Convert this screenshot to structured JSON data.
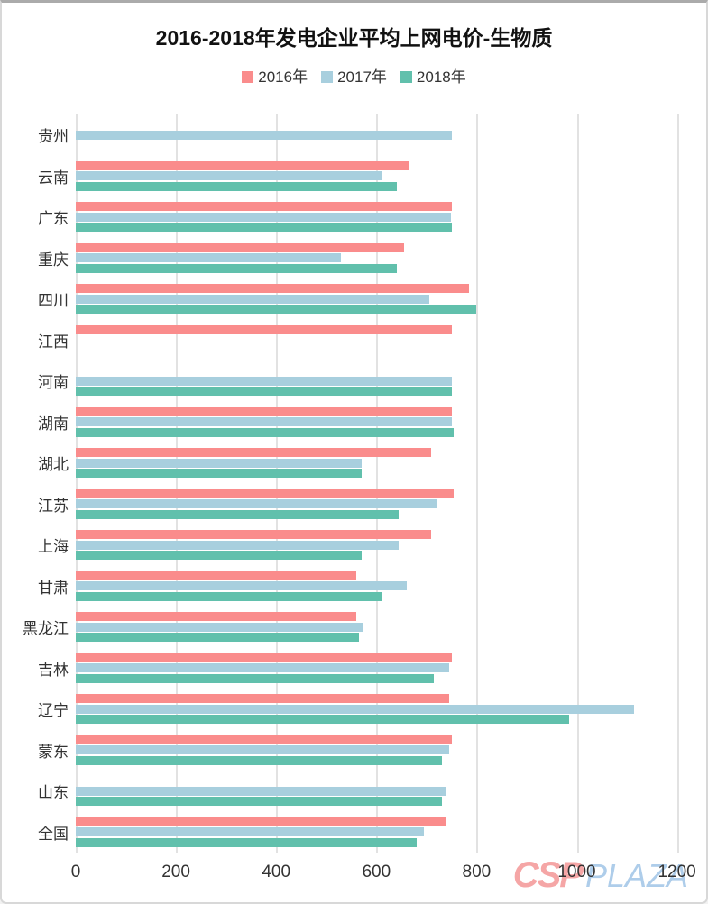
{
  "page": {
    "title": "2016-2018年发电企业平均上网电价-生物质"
  },
  "watermark": {
    "csp": "CSP",
    "plaza": "PLAZA"
  },
  "colors": {
    "series_2016": "#FA8C8C",
    "series_2017": "#A8CFDE",
    "series_2018": "#61C0AC",
    "gridline": "#E2E2E2",
    "text": "#333333"
  },
  "chart_data": {
    "type": "bar",
    "orientation": "horizontal",
    "title": "2016-2018年发电企业平均上网电价-生物质",
    "legend_position": "top",
    "grid": true,
    "categories": [
      "贵州",
      "云南",
      "广东",
      "重庆",
      "四川",
      "江西",
      "河南",
      "湖南",
      "湖北",
      "江苏",
      "上海",
      "甘肃",
      "黑龙江",
      "吉林",
      "辽宁",
      "蒙东",
      "山东",
      "全国"
    ],
    "series": [
      {
        "name": "2016年",
        "color": "#FA8C8C",
        "values": [
          null,
          665,
          750,
          655,
          785,
          750,
          null,
          750,
          710,
          755,
          710,
          560,
          560,
          750,
          745,
          750,
          null,
          740
        ]
      },
      {
        "name": "2017年",
        "color": "#A8CFDE",
        "values": [
          750,
          610,
          748,
          530,
          705,
          null,
          750,
          750,
          570,
          720,
          645,
          660,
          575,
          745,
          1115,
          745,
          740,
          695
        ]
      },
      {
        "name": "2018年",
        "color": "#61C0AC",
        "values": [
          null,
          640,
          750,
          640,
          800,
          null,
          750,
          755,
          570,
          645,
          570,
          610,
          565,
          715,
          985,
          730,
          730,
          680
        ]
      }
    ],
    "x_ticks": [
      0,
      200,
      400,
      600,
      800,
      1000,
      1200
    ],
    "xlim": [
      0,
      1235
    ],
    "xlabel": "",
    "ylabel": ""
  }
}
